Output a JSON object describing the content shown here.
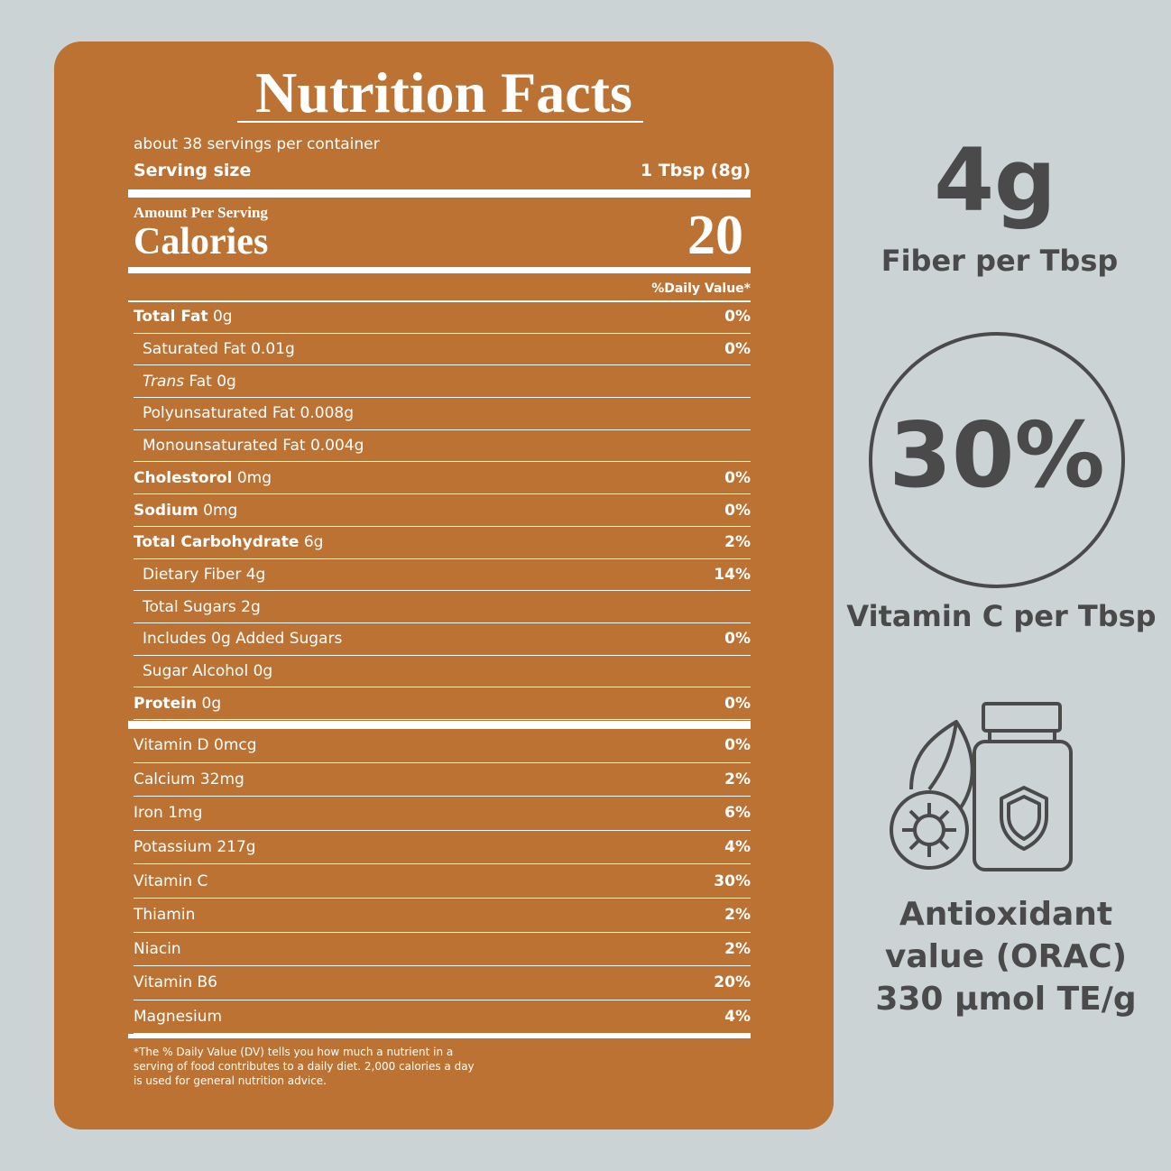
{
  "label": {
    "title": "Nutrition Facts",
    "servings": "about 38 servings per container",
    "serving_size_label": "Serving size",
    "serving_size": "1 Tbsp (8g)",
    "amount_per_serving": "Amount Per Serving",
    "calories_label": "Calories",
    "calories": "20",
    "daily_value_header": "%Daily Value*",
    "nutrients": [
      {
        "name": "Total Fat",
        "amount": "0g",
        "dv": "0%",
        "bold": true
      },
      {
        "name": "Saturated Fat",
        "amount": "0.01g",
        "dv": "0%",
        "indent": true
      },
      {
        "name_italic": "Trans",
        "name": "Fat",
        "amount": "0g",
        "indent": true
      },
      {
        "name": "Polyunsaturated Fat",
        "amount": "0.008g",
        "indent": true
      },
      {
        "name": "Monounsaturated Fat",
        "amount": "0.004g",
        "indent": true
      },
      {
        "name": "Cholestorol",
        "amount": "0mg",
        "dv": "0%",
        "bold": true
      },
      {
        "name": "Sodium",
        "amount": "0mg",
        "dv": "0%",
        "bold": true
      },
      {
        "name": "Total Carbohydrate",
        "amount": "6g",
        "dv": "2%",
        "bold": true
      },
      {
        "name": "Dietary Fiber",
        "amount": "4g",
        "dv": "14%",
        "indent": true
      },
      {
        "name": "Total Sugars",
        "amount": "2g",
        "indent": true
      },
      {
        "name": "Includes 0g Added Sugars",
        "dv": "0%",
        "indent": true
      },
      {
        "name": "Sugar Alcohol",
        "amount": "0g",
        "indent": true
      },
      {
        "name": "Protein",
        "amount": "0g",
        "dv": "0%",
        "bold": true
      }
    ],
    "vitamins": [
      {
        "name": "Vitamin D",
        "amount": "0mcg",
        "dv": "0%"
      },
      {
        "name": "Calcium",
        "amount": "32mg",
        "dv": "2%"
      },
      {
        "name": "Iron",
        "amount": "1mg",
        "dv": "6%"
      },
      {
        "name": "Potassium",
        "amount": "217g",
        "dv": "4%"
      },
      {
        "name": "Vitamin C",
        "dv": "30%"
      },
      {
        "name": "Thiamin",
        "dv": "2%"
      },
      {
        "name": "Niacin",
        "dv": "2%"
      },
      {
        "name": "Vitamin B6",
        "dv": "20%"
      },
      {
        "name": "Magnesium",
        "dv": "4%"
      }
    ],
    "footnote": "*The % Daily Value (DV) tells you how much a nutrient in a serving of food contributes to a daily diet. 2,000 calories a day is used for general nutrition advice."
  },
  "highlights": {
    "fiber_value": "4g",
    "fiber_caption": "Fiber per Tbsp",
    "vitamin_c_value": "30%",
    "vitamin_c_caption": "Vitamin C per Tbsp",
    "orac_lines": [
      "Antioxidant",
      "value (ORAC)",
      "330 µmol TE/g"
    ]
  }
}
